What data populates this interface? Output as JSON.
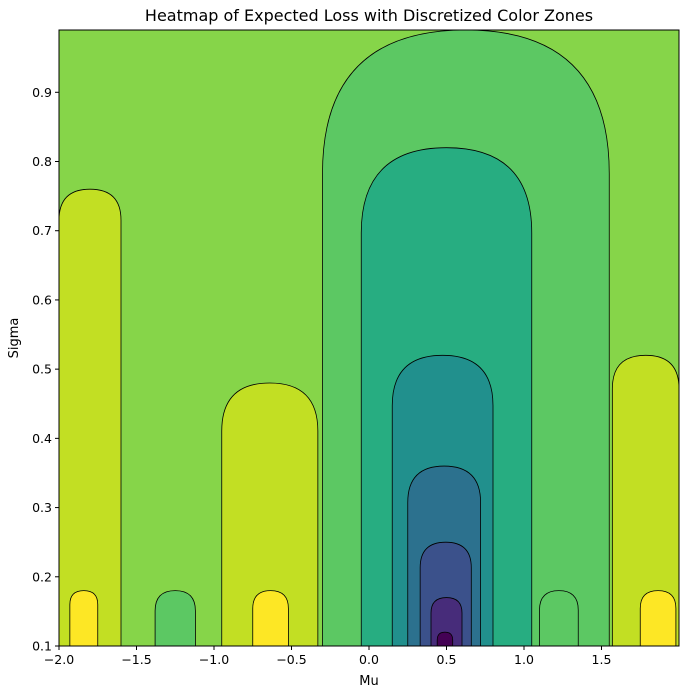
{
  "chart_data": {
    "type": "heatmap",
    "title": "Heatmap of Expected Loss with Discretized Color Zones",
    "xlabel": "Mu",
    "ylabel": "Sigma",
    "xlim": [
      -2.0,
      2.0
    ],
    "ylim": [
      0.1,
      0.99
    ],
    "x_ticks": [
      -2.0,
      -1.5,
      -1.0,
      -0.5,
      0.0,
      0.5,
      1.0,
      1.5
    ],
    "x_tick_labels": [
      "−2.0",
      "−1.5",
      "−1.0",
      "−0.5",
      "0.0",
      "0.5",
      "1.0",
      "1.5"
    ],
    "y_ticks": [
      0.1,
      0.2,
      0.3,
      0.4,
      0.5,
      0.6,
      0.7,
      0.8,
      0.9
    ],
    "y_tick_labels": [
      "0.1",
      "0.2",
      "0.3",
      "0.4",
      "0.5",
      "0.6",
      "0.7",
      "0.8",
      "0.9"
    ],
    "colormap": "viridis",
    "contour_line_color": "#000000",
    "color_zones": [
      {
        "level": 0,
        "color": "#440154"
      },
      {
        "level": 1,
        "color": "#472c7a"
      },
      {
        "level": 2,
        "color": "#3b518b"
      },
      {
        "level": 3,
        "color": "#2c718e"
      },
      {
        "level": 4,
        "color": "#21908d"
      },
      {
        "level": 5,
        "color": "#27ad81"
      },
      {
        "level": 6,
        "color": "#5cc863"
      },
      {
        "level": 7,
        "color": "#86d549"
      },
      {
        "level": 8,
        "color": "#c2df23"
      },
      {
        "level": 9,
        "color": "#fde725"
      }
    ],
    "zones": [
      {
        "name": "background",
        "level": 7,
        "mu_range": [
          -2.0,
          2.0
        ],
        "sigma_range": [
          0.1,
          0.99
        ]
      },
      {
        "name": "center-valley",
        "level": 6,
        "mu_range": [
          -0.3,
          1.55
        ],
        "sigma_range": [
          0.1,
          0.99
        ]
      },
      {
        "name": "center-basin",
        "level": 5,
        "mu_range": [
          -0.05,
          1.05
        ],
        "sigma_range": [
          0.1,
          0.82
        ]
      },
      {
        "name": "center-basin-inner",
        "level": 4,
        "mu_range": [
          0.15,
          0.8
        ],
        "sigma_range": [
          0.1,
          0.52
        ]
      },
      {
        "name": "center-well",
        "level": 3,
        "mu_range": [
          0.25,
          0.72
        ],
        "sigma_range": [
          0.1,
          0.36
        ]
      },
      {
        "name": "center-deep",
        "level": 2,
        "mu_range": [
          0.33,
          0.66
        ],
        "sigma_range": [
          0.1,
          0.25
        ]
      },
      {
        "name": "center-deeper",
        "level": 1,
        "mu_range": [
          0.4,
          0.6
        ],
        "sigma_range": [
          0.1,
          0.17
        ]
      },
      {
        "name": "center-min",
        "level": 0,
        "mu_range": [
          0.44,
          0.54
        ],
        "sigma_range": [
          0.1,
          0.12
        ]
      },
      {
        "name": "left-plateau",
        "level": 8,
        "mu_range": [
          -2.0,
          -1.6
        ],
        "sigma_range": [
          0.1,
          0.76
        ]
      },
      {
        "name": "left-peak",
        "level": 9,
        "mu_range": [
          -1.93,
          -1.75
        ],
        "sigma_range": [
          0.1,
          0.18
        ]
      },
      {
        "name": "mid-left-plateau",
        "level": 8,
        "mu_range": [
          -0.95,
          -0.33
        ],
        "sigma_range": [
          0.1,
          0.48
        ]
      },
      {
        "name": "mid-left-peak",
        "level": 9,
        "mu_range": [
          -0.75,
          -0.52
        ],
        "sigma_range": [
          0.1,
          0.18
        ]
      },
      {
        "name": "right-plateau",
        "level": 8,
        "mu_range": [
          1.57,
          2.0
        ],
        "sigma_range": [
          0.1,
          0.52
        ]
      },
      {
        "name": "right-peak",
        "level": 9,
        "mu_range": [
          1.75,
          1.98
        ],
        "sigma_range": [
          0.1,
          0.18
        ]
      },
      {
        "name": "low-left-pocket",
        "level": 6,
        "mu_range": [
          -1.38,
          -1.12
        ],
        "sigma_range": [
          0.1,
          0.18
        ]
      },
      {
        "name": "low-right-pocket",
        "level": 6,
        "mu_range": [
          1.1,
          1.35
        ],
        "sigma_range": [
          0.1,
          0.18
        ]
      }
    ]
  }
}
